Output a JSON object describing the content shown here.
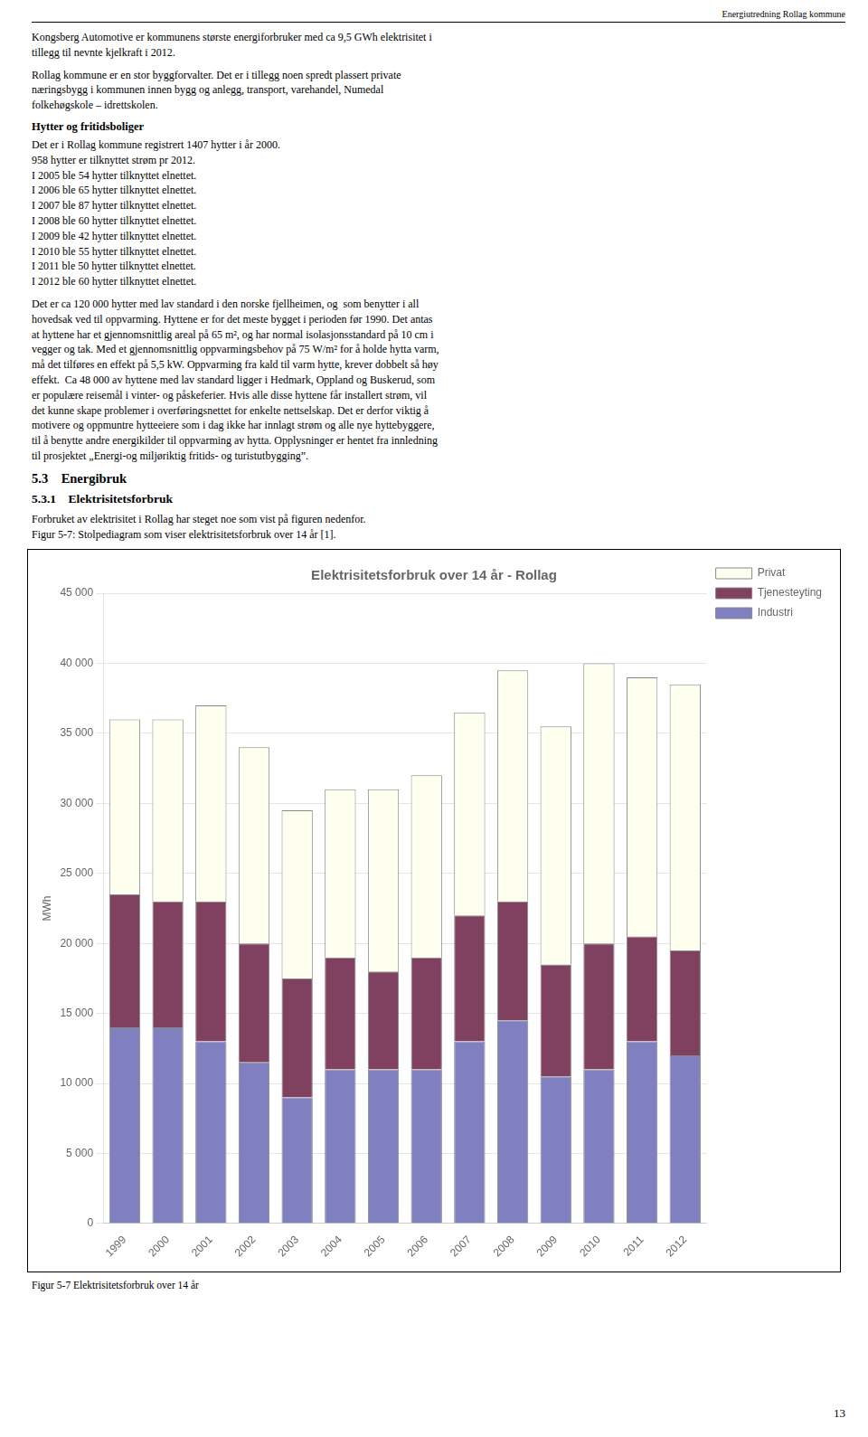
{
  "page": {
    "header": "Energiutredning Rollag kommune",
    "blocks": [
      {
        "text": "Kongsberg Automotive er kommunens største energiforbruker med ca 9,5 GWh elektrisitet i\ntillegg til nevnte kjelkraft i 2012."
      },
      {
        "text": "Rollag kommune er en stor byggforvalter. Det er i tillegg noen spredt plassert private\nnæringsbygg i kommunen innen bygg og anlegg, transport, varehandel, Numedal\nfolkehøgskole – idrettskolen."
      },
      {
        "heading": "Hytter og fritidsboliger"
      },
      {
        "text": "Det er i Rollag kommune registrert 1407 hytter i år 2000.\n958 hytter er tilknyttet strøm pr 2012.\nI 2005 ble 54 hytter tilknyttet elnettet.\nI 2006 ble 65 hytter tilknyttet elnettet.\nI 2007 ble 87 hytter tilknyttet elnettet.\nI 2008 ble 60 hytter tilknyttet elnettet.\nI 2009 ble 42 hytter tilknyttet elnettet.\nI 2010 ble 55 hytter tilknyttet elnettet.\nI 2011 ble 50 hytter tilknyttet elnettet.\nI 2012 ble 60 hytter tilknyttet elnettet."
      },
      {
        "text": "Det er ca 120 000 hytter med lav standard i den norske fjellheimen, og  som benytter i all\nhovedsak ved til oppvarming. Hyttene er for det meste bygget i perioden før 1990. Det antas\nat hyttene har et gjennomsnittlig areal på 65 m², og har normal isolasjonsstandard på 10 cm i\nvegger og tak. Med et gjennomsnittlig oppvarmingsbehov på 75 W/m² for å holde hytta varm,\nmå det tilføres en effekt på 5,5 kW. Oppvarming fra kald til varm hytte, krever dobbelt så høy\neffekt.  Ca 48 000 av hyttene med lav standard ligger i Hedmark, Oppland og Buskerud, som\ner populære reisemål i vinter- og påskeferier. Hvis alle disse hyttene får installert strøm, vil\ndet kunne skape problemer i overføringsnettet for enkelte nettselskap. Det er derfor viktig å\nmotivere og oppmuntre hytteeiere som i dag ikke har innlagt strøm og alle nye hyttebyggere,\ntil å benytte andre energikilder til oppvarming av hytta. Opplysninger er hentet fra innledning\ntil prosjektet „Energi-og miljøriktig fritids- og turistutbygging”."
      },
      {
        "section": "5.3    Energibruk"
      },
      {
        "subsection": "5.3.1    Elektrisitetsforbruk"
      },
      {
        "text": "Forbruket av elektrisitet i Rollag har steget noe som vist på figuren nedenfor.\nFigur 5-7: Stolpediagram som viser elektrisitetsforbruk over 14 år [1]."
      }
    ],
    "caption": "Figur 5-7 Elektrisitetsforbruk over 14 år",
    "page_number": "13"
  },
  "chart_data": {
    "type": "bar",
    "title": "Elektrisitetsforbruk over 14 år - Rollag",
    "ylabel": "MWh",
    "categories": [
      "1999",
      "2000",
      "2001",
      "2002",
      "2003",
      "2004",
      "2005",
      "2006",
      "2007",
      "2008",
      "2009",
      "2010",
      "2011",
      "2012"
    ],
    "series": [
      {
        "name": "Industri",
        "color": "#8080c0",
        "values": [
          14000,
          14000,
          13000,
          11500,
          9000,
          11000,
          11000,
          11000,
          13000,
          14500,
          10500,
          11000,
          13000,
          12000
        ]
      },
      {
        "name": "Tjenesteyting",
        "color": "#804060",
        "values": [
          9500,
          9000,
          10000,
          8500,
          8500,
          8000,
          7000,
          8000,
          9000,
          8500,
          8000,
          9000,
          7500,
          7500
        ]
      },
      {
        "name": "Privat",
        "color": "#fffff0",
        "values": [
          12500,
          13000,
          14000,
          14000,
          12000,
          12000,
          13000,
          13000,
          14500,
          16500,
          17000,
          20000,
          18500,
          19000
        ]
      }
    ],
    "stacked": true,
    "ylim": [
      0,
      45000
    ],
    "yticks": [
      0,
      {
        "value": 5000,
        "label": "5 000"
      },
      {
        "value": 10000,
        "label": "10 000"
      },
      {
        "value": 15000,
        "label": "15 000"
      },
      {
        "value": 20000,
        "label": "20 000"
      },
      {
        "value": 25000,
        "label": "25 000"
      },
      {
        "value": 30000,
        "label": "30 000"
      },
      {
        "value": 35000,
        "label": "35 000"
      },
      {
        "value": 40000,
        "label": "40 000"
      },
      {
        "value": 45000,
        "label": "45 000"
      }
    ],
    "grid": true,
    "legend": "right"
  }
}
